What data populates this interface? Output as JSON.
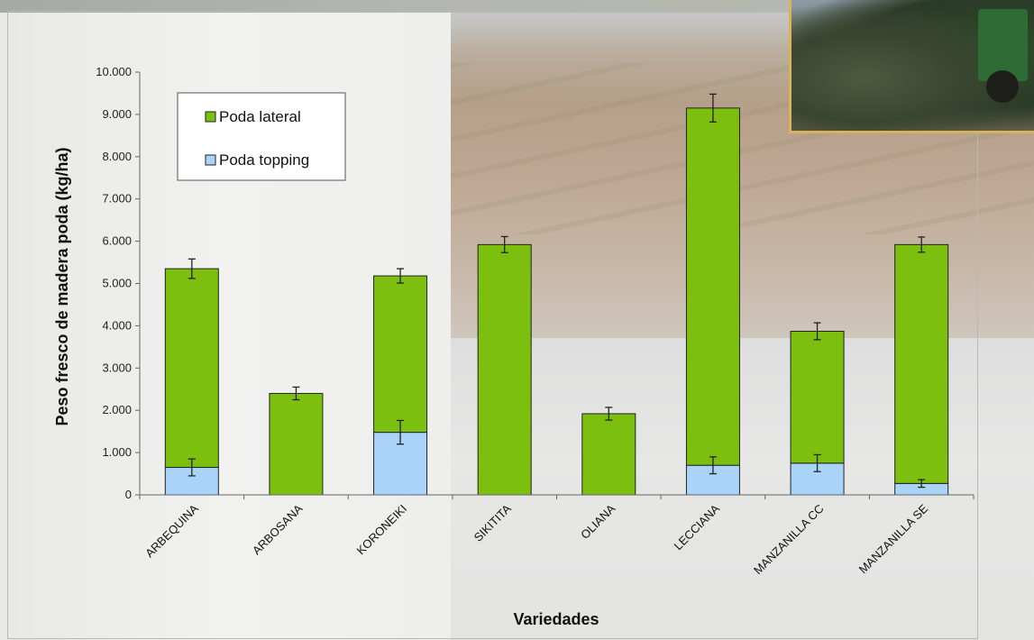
{
  "chart_data": {
    "type": "bar",
    "stacked": true,
    "title": "",
    "xlabel": "Variedades",
    "ylabel": "Peso fresco de madera poda (kg/ha)",
    "ylim": [
      0,
      10000
    ],
    "yticks": [
      0,
      1000,
      2000,
      3000,
      4000,
      5000,
      6000,
      7000,
      8000,
      9000,
      10000
    ],
    "ytick_labels": [
      "0",
      "1.000",
      "2.000",
      "3.000",
      "4.000",
      "5.000",
      "6.000",
      "7.000",
      "8.000",
      "9.000",
      "10.000"
    ],
    "categories": [
      "ARBEQUINA",
      "ARBOSANA",
      "KORONEIKI",
      "SIKITITA",
      "OLIANA",
      "LECCIANA",
      "MANZANILLA CC",
      "MANZANILLA SE"
    ],
    "series": [
      {
        "name": "Poda topping",
        "color": "#a9d3f8",
        "values": [
          650,
          0,
          1480,
          0,
          0,
          700,
          750,
          270
        ],
        "errors": [
          200,
          0,
          280,
          0,
          0,
          200,
          200,
          90
        ]
      },
      {
        "name": "Poda lateral",
        "color": "#7cbf0e",
        "values": [
          4700,
          2400,
          3700,
          5920,
          1920,
          8450,
          3120,
          5650
        ],
        "errors": [
          230,
          150,
          170,
          190,
          150,
          330,
          200,
          180
        ]
      }
    ],
    "legend": {
      "position": "top-left",
      "entries": [
        "Poda lateral",
        "Poda topping"
      ]
    },
    "grid": false
  }
}
